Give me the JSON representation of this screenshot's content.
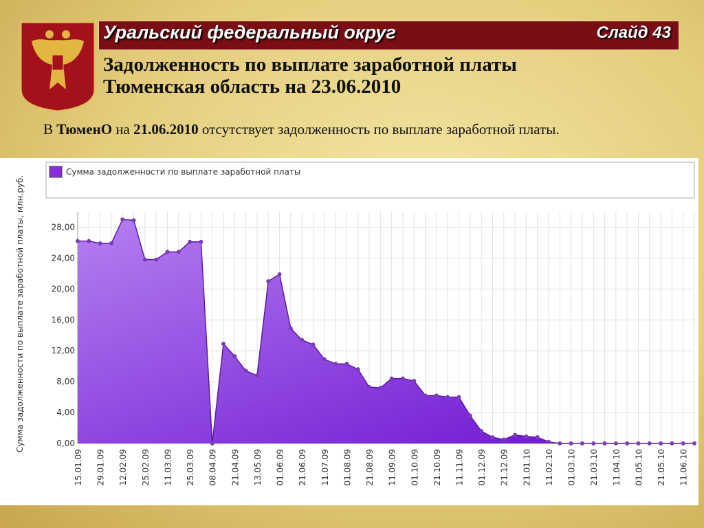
{
  "header": {
    "region": "Уральский федеральный округ",
    "slide": "Слайд 43",
    "title_lines": [
      "Задолженность по выплате заработной платы",
      "Тюменская область на 23.06.2010"
    ]
  },
  "note": {
    "parts": [
      "В ",
      "ТюменО",
      " на ",
      "21.06.2010",
      " отсутствует задолженность по выплате заработной платы."
    ]
  },
  "chart_data": {
    "type": "area",
    "y_label": "Сумма задолженности по выплате заработной платы, млн.руб.",
    "categories": [
      "15.01.09",
      null,
      "29.01.09",
      null,
      "12.02.09",
      null,
      "25.02.09",
      null,
      "11.03.09",
      null,
      "25.03.09",
      null,
      "08.04.09",
      null,
      "21.04.09",
      null,
      "13.05.09",
      null,
      "01.06.09",
      null,
      "21.06.09",
      null,
      "11.07.09",
      null,
      "01.08.09",
      null,
      "21.08.09",
      null,
      "11.09.09",
      null,
      "01.10.09",
      null,
      "21.10.09",
      null,
      "11.11.09",
      null,
      "01.12.09",
      null,
      "21.12.09",
      null,
      "21.01.10",
      null,
      "11.02.10",
      null,
      "01.03.10",
      null,
      "21.03.10",
      null,
      "11.04.10",
      null,
      "01.05.10",
      null,
      "21.05.10",
      null,
      "11.06.10",
      null
    ],
    "series": [
      {
        "name": "Сумма задолженности по выплате заработной платы",
        "color": "#8a2be2",
        "values": [
          26.2,
          26.2,
          25.9,
          25.9,
          29.0,
          28.9,
          23.8,
          23.8,
          24.8,
          24.8,
          26.1,
          26.1,
          0,
          12.9,
          11.3,
          9.4,
          8.8,
          21.0,
          21.9,
          14.9,
          13.4,
          12.8,
          10.9,
          10.3,
          10.3,
          9.6,
          7.3,
          7.2,
          8.4,
          8.4,
          8.1,
          6.2,
          6.2,
          6.0,
          6.0,
          3.6,
          1.6,
          0.8,
          0.5,
          1.1,
          0.9,
          0.8,
          0.2,
          0,
          0,
          0,
          0,
          0,
          0,
          0,
          0,
          0,
          0,
          0,
          0,
          0
        ]
      }
    ],
    "ylim": [
      0,
      30
    ],
    "yticks": [
      {
        "value": 0,
        "label": "0,00"
      },
      {
        "value": 4,
        "label": "4,00"
      },
      {
        "value": 8,
        "label": "8,00"
      },
      {
        "value": 12,
        "label": "12,00"
      },
      {
        "value": 16,
        "label": "16,00"
      },
      {
        "value": 20,
        "label": "20,00"
      },
      {
        "value": 24,
        "label": "24,00"
      },
      {
        "value": 28,
        "label": "28,00"
      }
    ],
    "grid": true
  }
}
